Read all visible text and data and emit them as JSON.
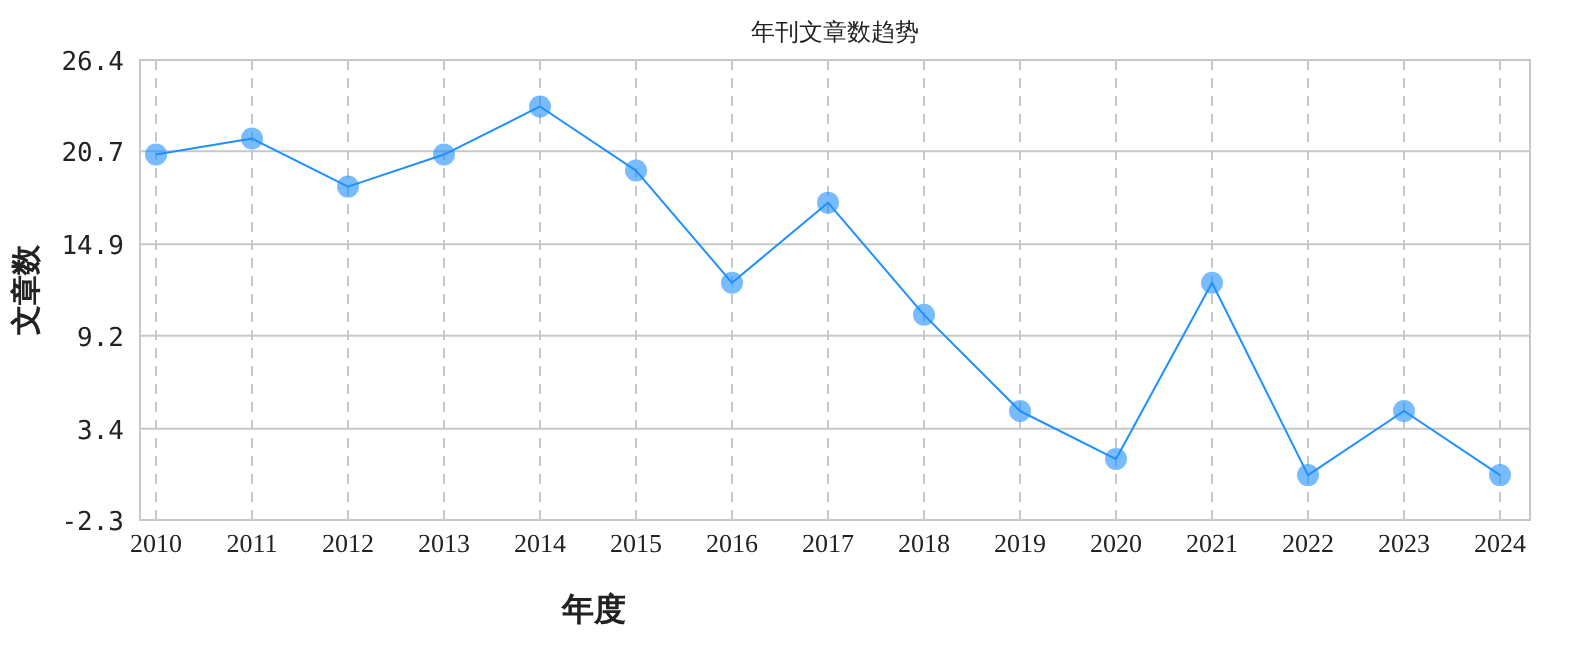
{
  "chart_data": {
    "type": "line",
    "title": "年刊文章数趋势",
    "xlabel": "年度",
    "ylabel": "文章数",
    "categories": [
      "2010",
      "2011",
      "2012",
      "2013",
      "2014",
      "2015",
      "2016",
      "2017",
      "2018",
      "2019",
      "2020",
      "2021",
      "2022",
      "2023",
      "2024"
    ],
    "series": [
      {
        "color": "#1e90ff",
        "values": [
          20.5,
          21.5,
          18.5,
          20.5,
          23.5,
          19.5,
          12.5,
          17.5,
          10.5,
          4.5,
          1.5,
          12.5,
          0.5,
          4.5,
          0.5
        ]
      }
    ],
    "ylim": [
      -2.3,
      26.4
    ],
    "yticks": [
      -2.3,
      3.4,
      9.2,
      14.9,
      20.7,
      26.4
    ],
    "grid": true,
    "marker": "circle",
    "line_style": "solid"
  }
}
